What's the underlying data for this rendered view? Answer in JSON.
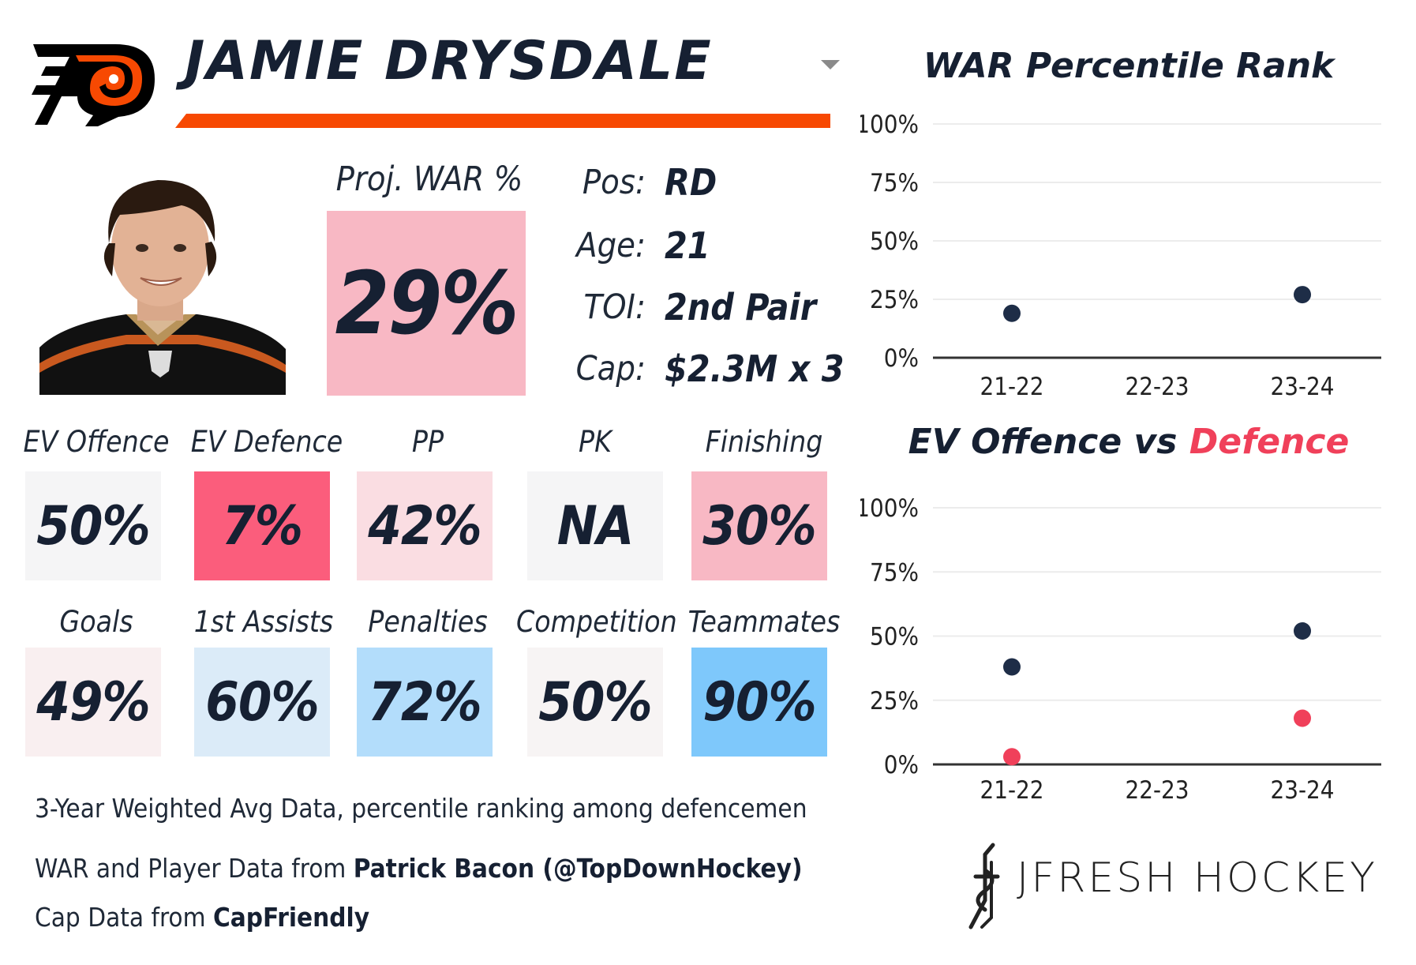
{
  "player": {
    "name": "JAMIE DRYSDALE",
    "team_logo": "flyers-logo-icon",
    "headshot": "player-headshot"
  },
  "projected_war": {
    "label": "Proj. WAR %",
    "value": "29%",
    "color": "#f8b8c4"
  },
  "info": [
    {
      "label": "Pos:",
      "value": "RD"
    },
    {
      "label": "Age:",
      "value": "21"
    },
    {
      "label": "TOI:",
      "value": "2nd Pair"
    },
    {
      "label": "Cap:",
      "value": "$2.3M x 3"
    }
  ],
  "stats_row1": [
    {
      "label": "EV Offence",
      "value": "50%",
      "color": "#f5f5f6"
    },
    {
      "label": "EV Defence",
      "value": "7%",
      "color": "#fb5d7c"
    },
    {
      "label": "PP",
      "value": "42%",
      "color": "#fadde2"
    },
    {
      "label": "PK",
      "value": "NA",
      "color": "#f5f5f6"
    },
    {
      "label": "Finishing",
      "value": "30%",
      "color": "#f8b8c4"
    }
  ],
  "stats_row2": [
    {
      "label": "Goals",
      "value": "49%",
      "color": "#f9eff0"
    },
    {
      "label": "1st Assists",
      "value": "60%",
      "color": "#dbebf8"
    },
    {
      "label": "Penalties",
      "value": "72%",
      "color": "#b3ddfb"
    },
    {
      "label": "Competition",
      "value": "50%",
      "color": "#f7f4f4"
    },
    {
      "label": "Teammates",
      "value": "90%",
      "color": "#7ec8fb"
    }
  ],
  "footer": {
    "note": "3-Year Weighted Avg Data, percentile ranking among defencemen",
    "war_source_prefix": "WAR and Player Data from ",
    "war_source": "Patrick Bacon (@TopDownHockey)",
    "cap_source_prefix": "Cap Data from ",
    "cap_source": "CapFriendly"
  },
  "brand": {
    "name": "JFRESH HOCKEY"
  },
  "colors": {
    "accent": "#f74902",
    "navy": "#1e2d47",
    "defence": "#f0405a"
  },
  "chart_data": [
    {
      "type": "scatter",
      "title": "WAR Percentile Rank",
      "categories": [
        "21-22",
        "22-23",
        "23-24"
      ],
      "series": [
        {
          "name": "WAR",
          "values": [
            19,
            null,
            27
          ],
          "color": "#1e2d47"
        }
      ],
      "ylim": [
        0,
        100
      ],
      "yticks": [
        "100%",
        "75%",
        "50%",
        "25%",
        "0%"
      ],
      "grid": true
    },
    {
      "type": "scatter",
      "title_part1": "EV Offence vs ",
      "title_part2": "Defence",
      "categories": [
        "21-22",
        "22-23",
        "23-24"
      ],
      "series": [
        {
          "name": "EV Offence",
          "values": [
            38,
            null,
            52
          ],
          "color": "#1e2d47"
        },
        {
          "name": "EV Defence",
          "values": [
            3,
            null,
            18
          ],
          "color": "#f0405a"
        }
      ],
      "ylim": [
        0,
        100
      ],
      "yticks": [
        "100%",
        "75%",
        "50%",
        "25%",
        "0%"
      ],
      "grid": true
    }
  ]
}
